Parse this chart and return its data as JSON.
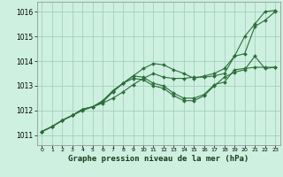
{
  "xlabel": "Graphe pression niveau de la mer (hPa)",
  "background_color": "#cdf0e0",
  "grid_color": "#a0c8b8",
  "line_color": "#2d6e3a",
  "xlim": [
    -0.5,
    23.5
  ],
  "ylim": [
    1010.6,
    1016.4
  ],
  "yticks": [
    1011,
    1012,
    1013,
    1014,
    1015,
    1016
  ],
  "xticks": [
    0,
    1,
    2,
    3,
    4,
    5,
    6,
    7,
    8,
    9,
    10,
    11,
    12,
    13,
    14,
    15,
    16,
    17,
    18,
    19,
    20,
    21,
    22,
    23
  ],
  "series": [
    {
      "x": [
        0,
        1,
        2,
        3,
        4,
        5,
        6,
        7,
        8,
        9,
        10,
        11,
        12,
        13,
        14,
        15,
        16,
        17,
        18,
        19,
        20,
        21,
        22,
        23
      ],
      "y": [
        1011.15,
        1011.35,
        1011.6,
        1011.8,
        1012.0,
        1012.15,
        1012.3,
        1012.5,
        1012.75,
        1013.05,
        1013.3,
        1013.5,
        1013.35,
        1013.3,
        1013.3,
        1013.35,
        1013.35,
        1013.4,
        1013.5,
        1014.2,
        1014.3,
        1015.4,
        1015.65,
        1016.0
      ]
    },
    {
      "x": [
        0,
        1,
        2,
        3,
        4,
        5,
        6,
        7,
        8,
        9,
        10,
        11,
        12,
        13,
        14,
        15,
        16,
        17,
        18,
        19,
        20,
        21,
        22,
        23
      ],
      "y": [
        1011.15,
        1011.35,
        1011.6,
        1011.8,
        1012.05,
        1012.15,
        1012.35,
        1012.75,
        1013.1,
        1013.4,
        1013.35,
        1013.1,
        1013.0,
        1012.7,
        1012.5,
        1012.5,
        1012.65,
        1013.05,
        1013.15,
        1013.65,
        1013.7,
        1013.75,
        1013.75,
        1013.75
      ]
    },
    {
      "x": [
        0,
        1,
        2,
        3,
        4,
        5,
        6,
        7,
        8,
        9,
        10,
        11,
        12,
        13,
        14,
        15,
        16,
        17,
        18,
        19,
        20,
        21,
        22,
        23
      ],
      "y": [
        1011.15,
        1011.35,
        1011.6,
        1011.8,
        1012.05,
        1012.15,
        1012.4,
        1012.8,
        1013.1,
        1013.3,
        1013.25,
        1013.0,
        1012.9,
        1012.6,
        1012.4,
        1012.4,
        1012.6,
        1013.0,
        1013.35,
        1013.55,
        1013.65,
        1014.2,
        1013.7,
        1013.75
      ]
    },
    {
      "x": [
        0,
        1,
        2,
        3,
        4,
        5,
        6,
        7,
        8,
        9,
        10,
        11,
        12,
        13,
        14,
        15,
        16,
        17,
        18,
        19,
        20,
        21,
        22,
        23
      ],
      "y": [
        1011.15,
        1011.35,
        1011.6,
        1011.8,
        1012.05,
        1012.15,
        1012.35,
        1012.8,
        1013.1,
        1013.4,
        1013.7,
        1013.9,
        1013.85,
        1013.65,
        1013.5,
        1013.3,
        1013.4,
        1013.5,
        1013.7,
        1014.2,
        1015.0,
        1015.5,
        1016.0,
        1016.05
      ]
    }
  ]
}
